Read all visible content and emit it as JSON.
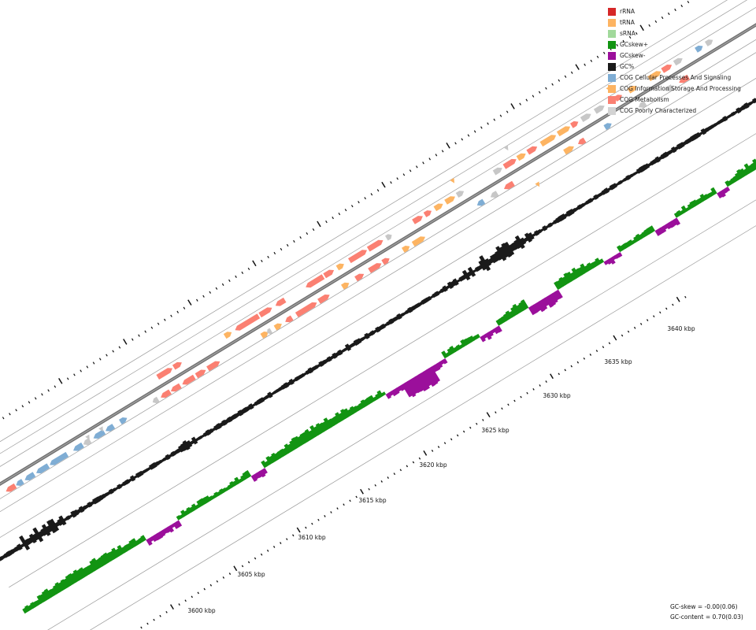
{
  "legend": {
    "items": [
      {
        "label": "rRNA",
        "color": "#d62728"
      },
      {
        "label": "tRNA",
        "color": "#fdb462"
      },
      {
        "label": "sRNA",
        "color": "#a1d99b"
      },
      {
        "label": "GCskew+",
        "color": "#129412"
      },
      {
        "label": "GCskew-",
        "color": "#9b0f9b"
      },
      {
        "label": "GC%",
        "color": "#1a1a1a"
      },
      {
        "label": "COG Cellular Processes And Signaling",
        "color": "#7fadd4"
      },
      {
        "label": "COG Information Storage And Processing",
        "color": "#fdb462"
      },
      {
        "label": "COG Metabolism",
        "color": "#fb8072"
      },
      {
        "label": "COG Poorly Characterized",
        "color": "#d3d3d3"
      }
    ]
  },
  "stats": {
    "gc_skew": "GC-skew = -0.00(0.06)",
    "gc_content": "GC-content = 0.70(0.03)"
  },
  "scale": {
    "labels": [
      "3600 kbp",
      "3605 kbp",
      "3610 kbp",
      "3615 kbp",
      "3620 kbp",
      "3625 kbp",
      "3630 kbp",
      "3635 kbp",
      "3640 kbp"
    ]
  }
}
